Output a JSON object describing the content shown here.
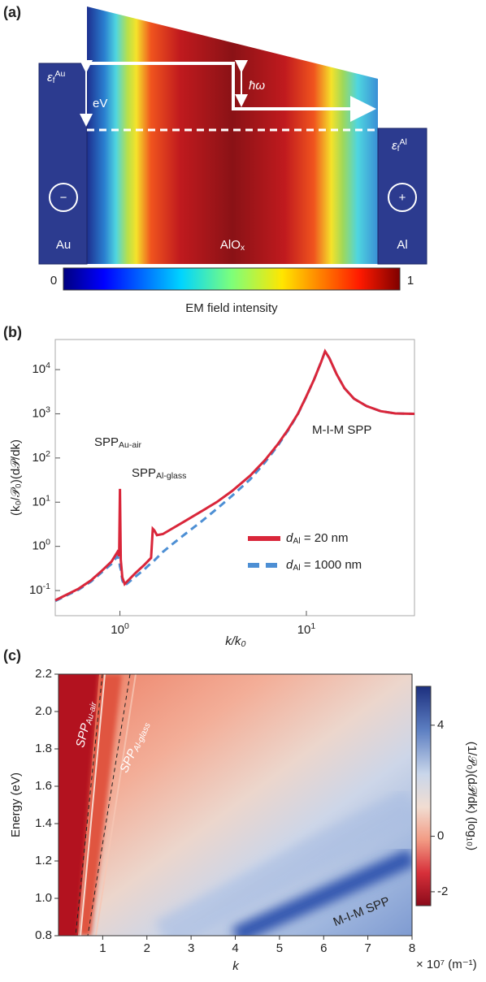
{
  "diagram": {
    "label": "(a)",
    "left_level": {
      "symbol": "ε",
      "sub": "f",
      "sup": "Au"
    },
    "right_level": {
      "symbol": "ε",
      "sub": "f",
      "sup": "Al"
    },
    "bias": "eV",
    "photon": "ħω",
    "left_sign": "−",
    "right_sign": "+",
    "left_metal": "Au",
    "insulator": {
      "text": "AlO",
      "sub": "x"
    },
    "right_metal": "Al",
    "colorbar_min": "0",
    "colorbar_max": "1",
    "colorbar_label": "EM field intensity"
  },
  "chart_data": [
    {
      "type": "line",
      "panel_label": "(b)",
      "log_x": true,
      "log_y": true,
      "x_label": "k/k₀",
      "y_label": "(k₀/𝒫₀)(d𝒫/dk)",
      "x": [
        0.45,
        0.5,
        0.6,
        0.7,
        0.8,
        0.9,
        0.97,
        0.99,
        1.0,
        1.01,
        1.03,
        1.06,
        1.2,
        1.35,
        1.47,
        1.5,
        1.53,
        1.58,
        1.7,
        1.9,
        2.2,
        2.7,
        3.3,
        4,
        5,
        6,
        7,
        8,
        9,
        10,
        11,
        12,
        12.6,
        13.3,
        14.5,
        16,
        18,
        21,
        25,
        30,
        38
      ],
      "series": [
        {
          "name": "dAl = 20 nm",
          "color": "#d9263a",
          "dash": false,
          "values": [
            0.06,
            0.075,
            0.11,
            0.17,
            0.28,
            0.45,
            0.75,
            0.6,
            20,
            0.5,
            0.2,
            0.14,
            0.24,
            0.38,
            0.55,
            2.5,
            2.3,
            1.8,
            1.9,
            2.5,
            3.6,
            6,
            10,
            18,
            40,
            90,
            200,
            450,
            1000,
            2500,
            6000,
            15000,
            26000,
            18000,
            8000,
            3800,
            2200,
            1500,
            1150,
            1020,
            1000
          ]
        },
        {
          "name": "dAl = 1000 nm",
          "color": "#4d8fd4",
          "dash": true,
          "values": [
            0.058,
            0.072,
            0.105,
            0.16,
            0.26,
            0.4,
            0.6,
            0.5,
            0.35,
            0.3,
            0.17,
            0.13,
            0.2,
            0.3,
            0.42,
            0.45,
            0.48,
            0.55,
            0.75,
            1.1,
            1.8,
            3.5,
            7,
            14,
            33,
            80,
            185,
            430,
            980,
            2450,
            6000,
            15000,
            26000,
            18000,
            8000,
            3800,
            2200,
            1500,
            1150,
            1020,
            1000
          ]
        }
      ],
      "xlim": [
        0.45,
        38
      ],
      "xticks": [
        {
          "value": 1,
          "label": "10",
          "exponent": "0"
        },
        {
          "value": 10,
          "label": "10",
          "exponent": "1"
        }
      ],
      "ylim": [
        0.027,
        48000
      ],
      "yticks": [
        {
          "value": 0.1,
          "label": "10",
          "exponent": "-1"
        },
        {
          "value": 1,
          "label": "10",
          "exponent": "0"
        },
        {
          "value": 10,
          "label": "10",
          "exponent": "1"
        },
        {
          "value": 100,
          "label": "10",
          "exponent": "2"
        },
        {
          "value": 1000,
          "label": "10",
          "exponent": "3"
        },
        {
          "value": 10000,
          "label": "10",
          "exponent": "4"
        }
      ],
      "annotations": [
        {
          "text": "SPP",
          "sub": "Au-air"
        },
        {
          "text": "SPP",
          "sub": "Al-glass"
        },
        {
          "text": "M-I-M SPP"
        }
      ],
      "legend": "center right"
    },
    {
      "type": "heatmap",
      "panel_label": "(c)",
      "x_label": "k",
      "x_unit": "× 10⁷ (m⁻¹)",
      "y_label": "Energy (eV)",
      "colorbar_label": "(1/𝒫₀)(d𝒫/dk) (log₁₀)",
      "xlim": [
        0,
        8
      ],
      "xticks": [
        1,
        2,
        3,
        4,
        5,
        6,
        7,
        8
      ],
      "ylim": [
        0.8,
        2.2
      ],
      "yticks": [
        0.8,
        {
          "value": 1,
          "label": "1.0"
        },
        1.2,
        1.4,
        1.6,
        1.8,
        {
          "value": 2,
          "label": "2.0"
        },
        2.2
      ],
      "clim": [
        -2.5,
        5.4
      ],
      "cticks": [
        -2,
        0,
        4
      ],
      "annotations": [
        {
          "text": "SPP",
          "sub": "Au-air"
        },
        {
          "text": "SPP",
          "sub": "Al-glass"
        },
        {
          "text": "M-I-M SPP"
        }
      ]
    }
  ]
}
